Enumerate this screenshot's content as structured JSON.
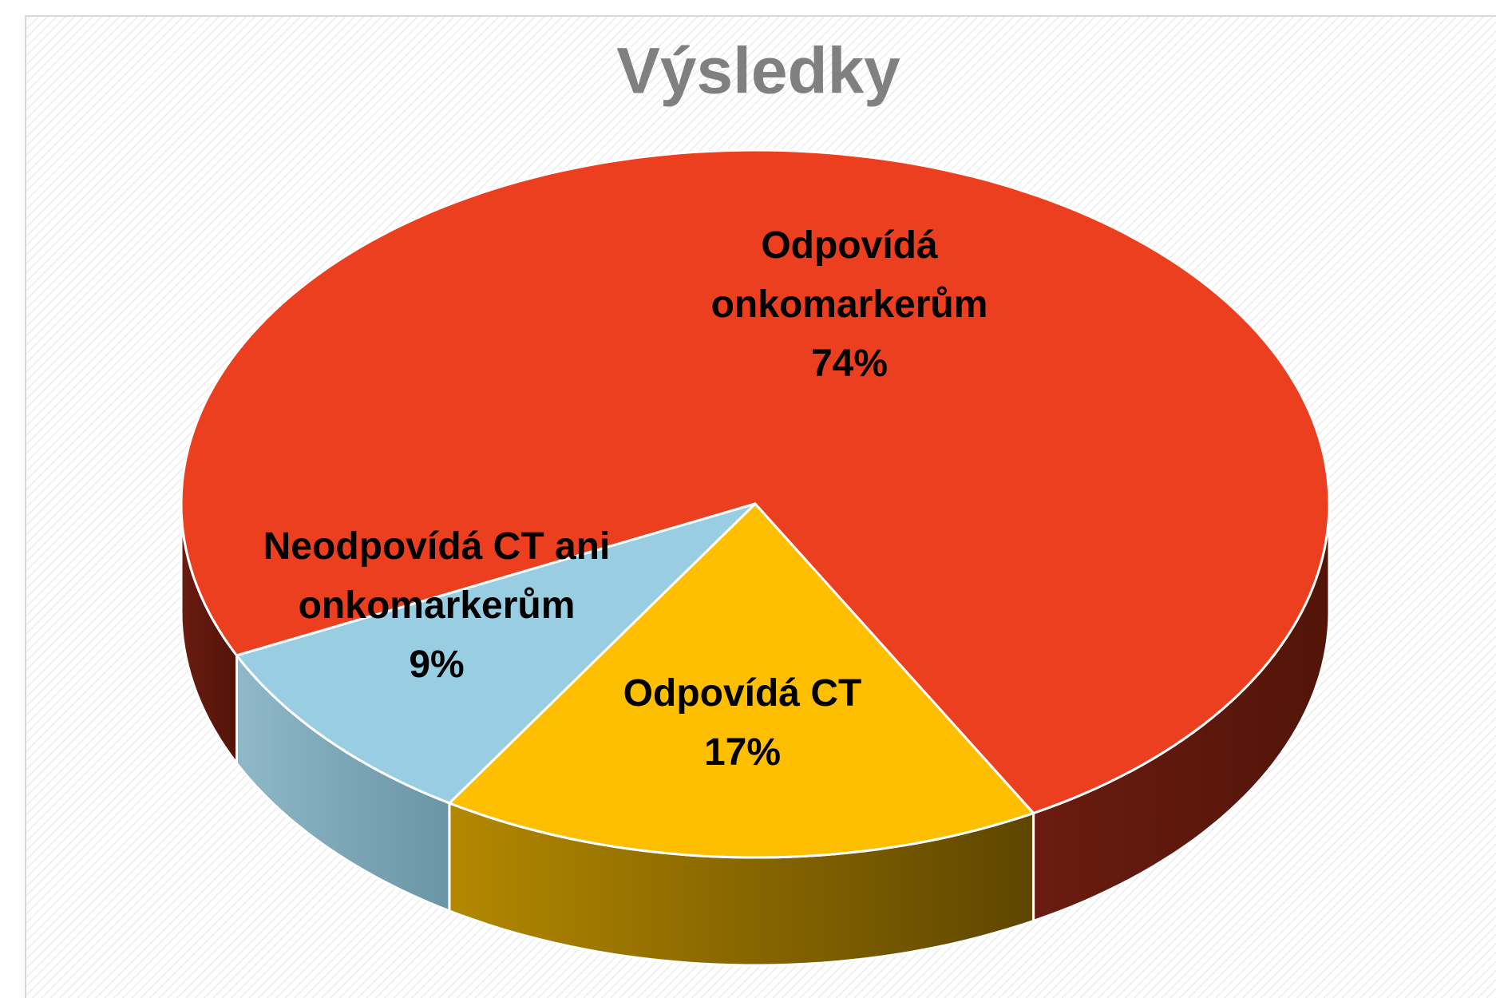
{
  "chart_data": {
    "type": "pie",
    "title": "Výsledky",
    "categories": [
      "Odpovídá onkomarkerům",
      "Odpovídá CT",
      "Neodpovídá CT ani onkomarkerům"
    ],
    "values": [
      74,
      17,
      9
    ],
    "value_labels": [
      "74%",
      "17%",
      "9%"
    ],
    "colors": [
      "#ec3f20",
      "#fdbf00",
      "#99cde1"
    ],
    "side_colors": [
      [
        "#6a1c10",
        "#531408"
      ],
      [
        "#b38800",
        "#5e4600"
      ],
      [
        "#8fb8c8",
        "#6a95a5"
      ]
    ]
  }
}
